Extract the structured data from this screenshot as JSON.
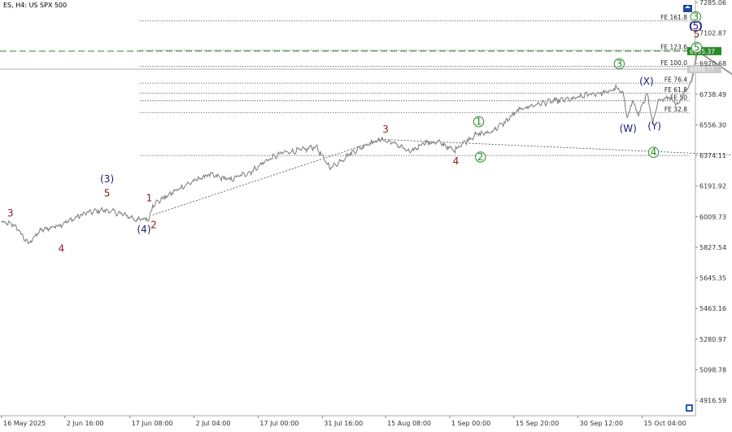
{
  "chart_data": {
    "type": "line",
    "title": "ES, H4:  US SPX 500",
    "price_range": [
      4825,
      7285.06
    ],
    "y_ticks": [
      {
        "value": 7285.06,
        "label": "7285.06"
      },
      {
        "value": 7102.87,
        "label": "7102.87"
      },
      {
        "value": 6920.68,
        "label": "6920.68"
      },
      {
        "value": 6738.49,
        "label": "6738.49"
      },
      {
        "value": 6556.3,
        "label": "6556.30"
      },
      {
        "value": 6374.11,
        "label": "6374.11"
      },
      {
        "value": 6191.92,
        "label": "6191.92"
      },
      {
        "value": 6009.73,
        "label": "6009.73"
      },
      {
        "value": 5827.54,
        "label": "5827.54"
      },
      {
        "value": 5645.35,
        "label": "5645.35"
      },
      {
        "value": 5463.16,
        "label": "5463.16"
      },
      {
        "value": 5280.97,
        "label": "5280.97"
      },
      {
        "value": 5098.78,
        "label": "5098.78"
      },
      {
        "value": 4916.59,
        "label": "4916.59"
      }
    ],
    "x_ticks": [
      {
        "index": 0,
        "label": "16 May 2025"
      },
      {
        "index": 72,
        "label": "2 Jun 16:00"
      },
      {
        "index": 146,
        "label": "17 Jun 08:00"
      },
      {
        "index": 219,
        "label": "2 Jul 04:00"
      },
      {
        "index": 292,
        "label": "17 Jul 00:00"
      },
      {
        "index": 365,
        "label": "31 Jul 16:00"
      },
      {
        "index": 437,
        "label": "15 Aug 08:00"
      },
      {
        "index": 510,
        "label": "1 Sep 00:00"
      },
      {
        "index": 583,
        "label": "15 Sep 20:00"
      },
      {
        "index": 656,
        "label": "30 Sep 12:00"
      },
      {
        "index": 729,
        "label": "15 Oct 04:00"
      }
    ],
    "bar_count": 785,
    "price_anchors": [
      [
        0,
        5975
      ],
      [
        15,
        5960
      ],
      [
        30,
        5850
      ],
      [
        45,
        5930
      ],
      [
        60,
        5950
      ],
      [
        75,
        5980
      ],
      [
        95,
        6030
      ],
      [
        115,
        6050
      ],
      [
        135,
        6030
      ],
      [
        155,
        5990
      ],
      [
        168,
        6000
      ],
      [
        172,
        6080
      ],
      [
        190,
        6140
      ],
      [
        210,
        6200
      ],
      [
        235,
        6260
      ],
      [
        260,
        6230
      ],
      [
        285,
        6280
      ],
      [
        300,
        6340
      ],
      [
        320,
        6390
      ],
      [
        345,
        6410
      ],
      [
        358,
        6430
      ],
      [
        368,
        6340
      ],
      [
        375,
        6300
      ],
      [
        395,
        6380
      ],
      [
        415,
        6440
      ],
      [
        432,
        6470
      ],
      [
        450,
        6440
      ],
      [
        465,
        6390
      ],
      [
        480,
        6450
      ],
      [
        500,
        6450
      ],
      [
        515,
        6400
      ],
      [
        520,
        6430
      ],
      [
        540,
        6500
      ],
      [
        555,
        6510
      ],
      [
        570,
        6560
      ],
      [
        590,
        6650
      ],
      [
        610,
        6680
      ],
      [
        630,
        6700
      ],
      [
        650,
        6710
      ],
      [
        670,
        6740
      ],
      [
        690,
        6750
      ],
      [
        700,
        6780
      ],
      [
        708,
        6730
      ],
      [
        712,
        6600
      ],
      [
        718,
        6700
      ],
      [
        725,
        6610
      ],
      [
        730,
        6690
      ],
      [
        735,
        6740
      ],
      [
        741,
        6560
      ],
      [
        748,
        6710
      ],
      [
        760,
        6720
      ],
      [
        770,
        6680
      ],
      [
        778,
        6760
      ],
      [
        785,
        6810
      ]
    ],
    "projection_path": [
      [
        785,
        6810
      ],
      [
        792,
        6995.37
      ],
      [
        855,
        6775
      ]
    ],
    "current_price": {
      "value": 6995.37,
      "label": "6995.37",
      "color": "#2a8a2a"
    },
    "second_price": {
      "value": 6888,
      "label": "6888.??"
    },
    "fib_levels": [
      {
        "label": "FE 161.8",
        "value": 7175
      },
      {
        "label": "FE 123.6",
        "value": 7000
      },
      {
        "label": "FE 100.0",
        "value": 6905
      },
      {
        "label": "FE 76.4",
        "value": 6805
      },
      {
        "label": "FE 61.8",
        "value": 6745
      },
      {
        "label": "FE 50",
        "value": 6700
      },
      {
        "label": "FE 32.8",
        "value": 6630
      },
      {
        "label": "",
        "value": 6374
      }
    ],
    "trendlines": [
      {
        "from": [
          172,
          6020
        ],
        "to": [
          432,
          6470
        ]
      },
      {
        "from": [
          432,
          6470
        ],
        "to": [
          845,
          6374
        ]
      }
    ],
    "wave_labels": [
      {
        "text": "3",
        "i": 10,
        "p": 6030,
        "style": "plain",
        "color": "#8b1a1a"
      },
      {
        "text": "4",
        "i": 68,
        "p": 5820,
        "style": "plain",
        "color": "#8b1a1a"
      },
      {
        "text": "5",
        "i": 120,
        "p": 6150,
        "style": "plain",
        "color": "#8b1a1a"
      },
      {
        "text": "(3)",
        "i": 120,
        "p": 6235,
        "style": "plain",
        "color": "#1a1a7a"
      },
      {
        "text": "1",
        "i": 168,
        "p": 6120,
        "style": "plain",
        "color": "#8b1a1a"
      },
      {
        "text": "2",
        "i": 173,
        "p": 5960,
        "style": "plain",
        "color": "#8b1a1a"
      },
      {
        "text": "(4)",
        "i": 162,
        "p": 5935,
        "style": "plain",
        "color": "#1a1a7a"
      },
      {
        "text": "3",
        "i": 437,
        "p": 6530,
        "style": "plain",
        "color": "#8b1a1a"
      },
      {
        "text": "4",
        "i": 517,
        "p": 6340,
        "style": "plain",
        "color": "#8b1a1a"
      },
      {
        "text": "1",
        "i": 543,
        "p": 6575,
        "style": "circle",
        "color": "#2a8a2a"
      },
      {
        "text": "2",
        "i": 545,
        "p": 6365,
        "style": "circle",
        "color": "#2a8a2a"
      },
      {
        "text": "3",
        "i": 703,
        "p": 6920,
        "style": "circle",
        "color": "#2a8a2a"
      },
      {
        "text": "(X)",
        "i": 734,
        "p": 6815,
        "style": "plain",
        "color": "#1a1a7a"
      },
      {
        "text": "(W)",
        "i": 713,
        "p": 6535,
        "style": "plain",
        "color": "#1a1a7a"
      },
      {
        "text": "(Y)",
        "i": 743,
        "p": 6550,
        "style": "plain",
        "color": "#1a1a7a"
      },
      {
        "text": "4",
        "i": 742,
        "p": 6393,
        "style": "circle",
        "color": "#2a8a2a"
      },
      {
        "text": "3",
        "i": 790,
        "p": 7200,
        "style": "circle",
        "color": "#2a8a2a"
      },
      {
        "text": "(5)",
        "i": 790,
        "p": 7144,
        "style": "circle",
        "color": "#1a1a7a"
      },
      {
        "text": "5",
        "i": 791,
        "p": 7097,
        "style": "plain",
        "color": "#8b1a1a"
      },
      {
        "text": "5",
        "i": 791,
        "p": 7017,
        "style": "circle",
        "color": "#2a8a2a"
      }
    ],
    "colors": {
      "price": "#7a7a7a",
      "fib": "#555555",
      "current": "#2a8a2a",
      "projection": "#9a9a9a"
    }
  }
}
